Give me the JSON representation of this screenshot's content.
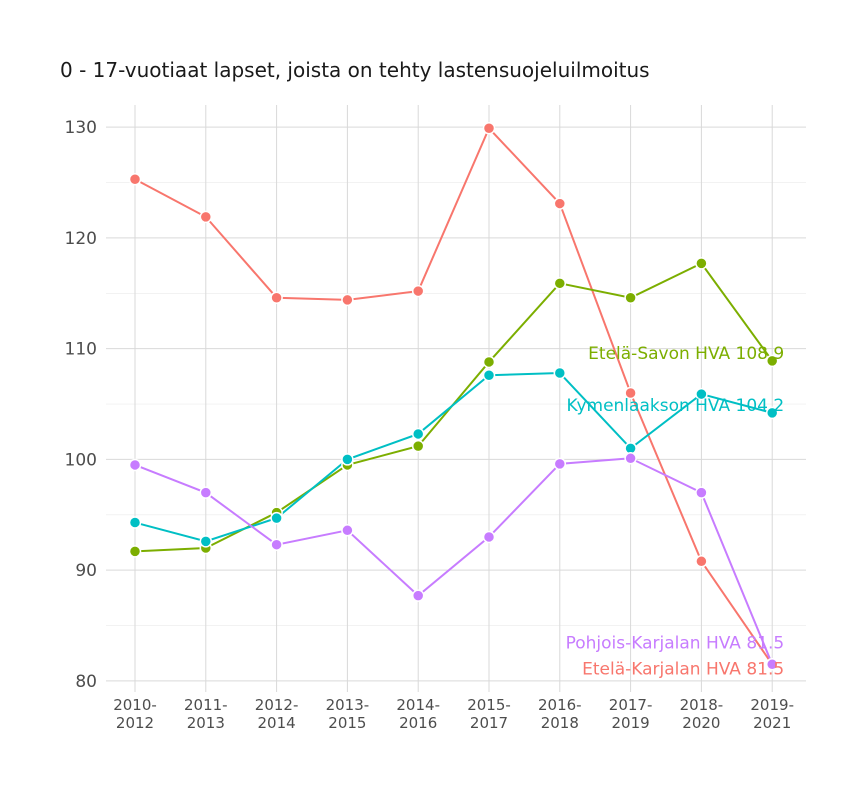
{
  "chart_data": {
    "type": "line",
    "title": "0 - 17-vuotiaat lapset, joista on tehty lastensuojeluilmoitus",
    "xlabel": "",
    "ylabel": "",
    "categories": [
      "2010-2012",
      "2011-2013",
      "2012-2014",
      "2013-2015",
      "2014-2016",
      "2015-2017",
      "2016-2018",
      "2017-2019",
      "2018-2020",
      "2019-2021"
    ],
    "category_lines": [
      [
        "2010-",
        "2012"
      ],
      [
        "2011-",
        "2013"
      ],
      [
        "2012-",
        "2014"
      ],
      [
        "2013-",
        "2015"
      ],
      [
        "2014-",
        "2016"
      ],
      [
        "2015-",
        "2017"
      ],
      [
        "2016-",
        "2018"
      ],
      [
        "2017-",
        "2019"
      ],
      [
        "2018-",
        "2020"
      ],
      [
        "2019-",
        "2021"
      ]
    ],
    "ylim": [
      79,
      132
    ],
    "yticks": [
      80,
      90,
      100,
      110,
      120,
      130
    ],
    "grid": true,
    "legend": "none (direct labels at line ends)",
    "series": [
      {
        "name": "Etelä-Karjalan HVA",
        "color": "#F8766D",
        "values": [
          125.3,
          121.9,
          114.6,
          114.4,
          115.2,
          129.9,
          123.1,
          106.0,
          90.8,
          81.5
        ],
        "end_label": "Etelä-Karjalan HVA 81.5"
      },
      {
        "name": "Etelä-Savon HVA",
        "color": "#7CAE00",
        "values": [
          91.7,
          92.0,
          95.2,
          99.5,
          101.2,
          108.8,
          115.9,
          114.6,
          117.7,
          108.9
        ],
        "end_label": "Etelä-Savon HVA 108.9"
      },
      {
        "name": "Kymenlaakson HVA",
        "color": "#00BFC4",
        "values": [
          94.3,
          92.6,
          94.7,
          100.0,
          102.3,
          107.6,
          107.8,
          101.0,
          105.9,
          104.2
        ],
        "end_label": "Kymenlaakson HVA 104.2"
      },
      {
        "name": "Pohjois-Karjalan HVA",
        "color": "#C77CFF",
        "values": [
          99.5,
          97.0,
          92.3,
          93.6,
          87.7,
          93.0,
          99.6,
          100.1,
          97.0,
          81.5
        ],
        "end_label": "Pohjois-Karjalan HVA 81.5"
      }
    ]
  }
}
